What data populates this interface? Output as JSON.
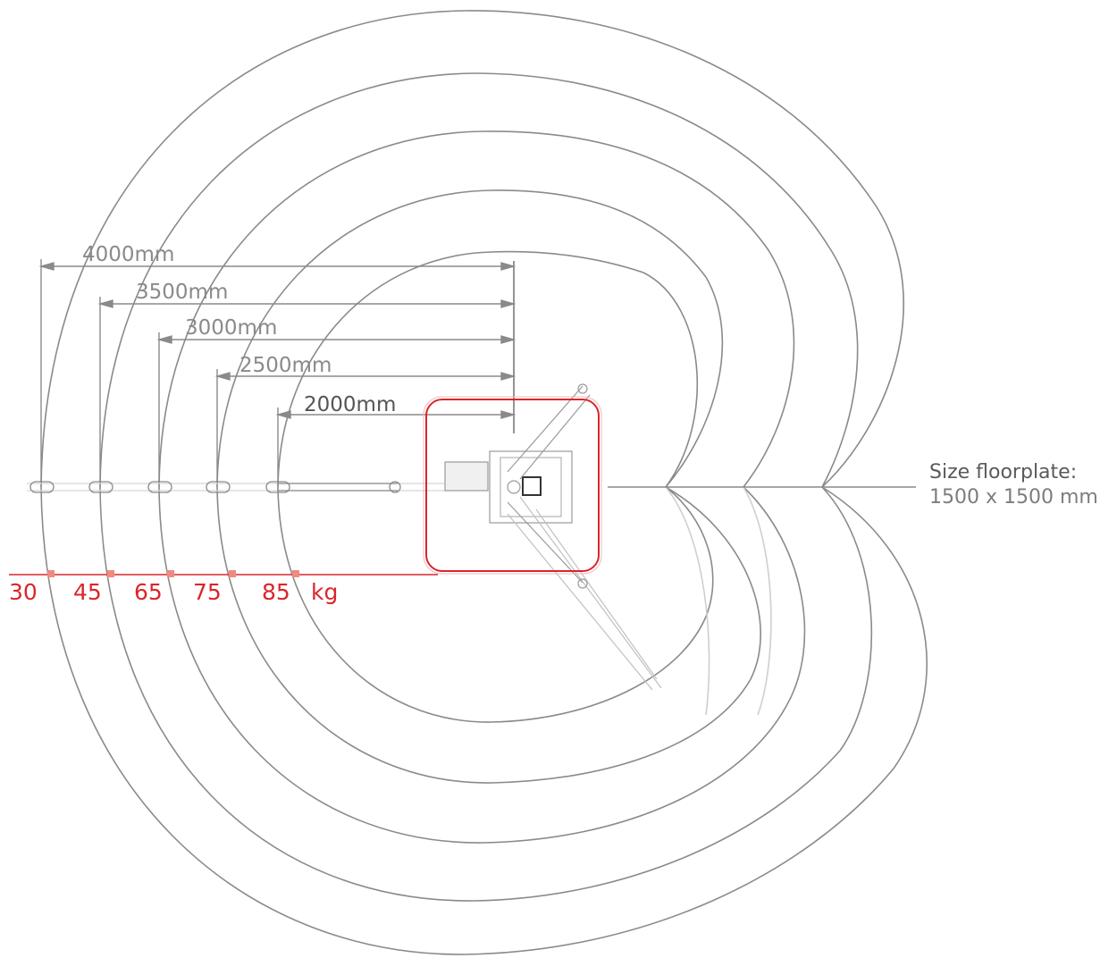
{
  "reach_labels": [
    "4000mm",
    "3500mm",
    "3000mm",
    "2500mm",
    "2000mm"
  ],
  "load_labels": [
    "30",
    "45",
    "65",
    "75",
    "85"
  ],
  "load_unit": "kg",
  "floorplate": {
    "title": "Size floorplate:",
    "size": "1500 x 1500 mm"
  },
  "colors": {
    "line": "#8a8a8a",
    "line_light": "#c9c9c9",
    "accent": "#d9262b",
    "marker": "#f08a80",
    "text": "#5a5a5a"
  }
}
